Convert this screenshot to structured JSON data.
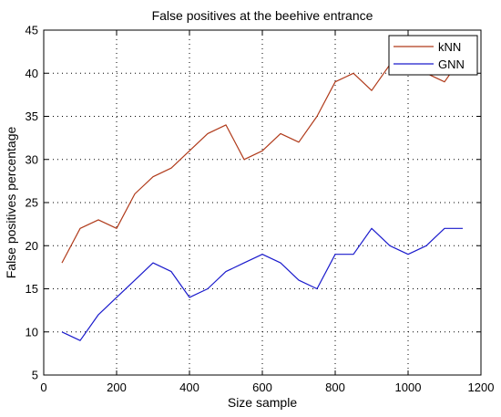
{
  "chart_data": {
    "type": "line",
    "title": "False positives at the beehive entrance",
    "xlabel": "Size sample",
    "ylabel": "False positives percentage",
    "xlim": [
      0,
      1200
    ],
    "ylim": [
      5,
      45
    ],
    "xticks": [
      0,
      200,
      400,
      600,
      800,
      1000,
      1200
    ],
    "yticks": [
      5,
      10,
      15,
      20,
      25,
      30,
      35,
      40,
      45
    ],
    "grid": true,
    "legend_position": "top-right",
    "series": [
      {
        "name": "kNN",
        "color": "#b03a1a",
        "x": [
          50,
          100,
          150,
          200,
          250,
          300,
          350,
          400,
          450,
          500,
          550,
          600,
          650,
          700,
          750,
          800,
          850,
          900,
          950,
          1000,
          1050,
          1100,
          1150
        ],
        "y": [
          18,
          22,
          23,
          22,
          26,
          28,
          29,
          31,
          33,
          34,
          30,
          31,
          33,
          32,
          35,
          39,
          40,
          38,
          41,
          41,
          40,
          39,
          42
        ]
      },
      {
        "name": "GNN",
        "color": "#1a1acc",
        "x": [
          50,
          100,
          150,
          200,
          250,
          300,
          350,
          400,
          450,
          500,
          550,
          600,
          650,
          700,
          750,
          800,
          850,
          900,
          950,
          1000,
          1050,
          1100,
          1150
        ],
        "y": [
          10,
          9,
          12,
          14,
          16,
          18,
          17,
          14,
          15,
          17,
          18,
          19,
          18,
          16,
          15,
          19,
          19,
          22,
          20,
          19,
          20,
          22,
          22
        ]
      }
    ]
  }
}
